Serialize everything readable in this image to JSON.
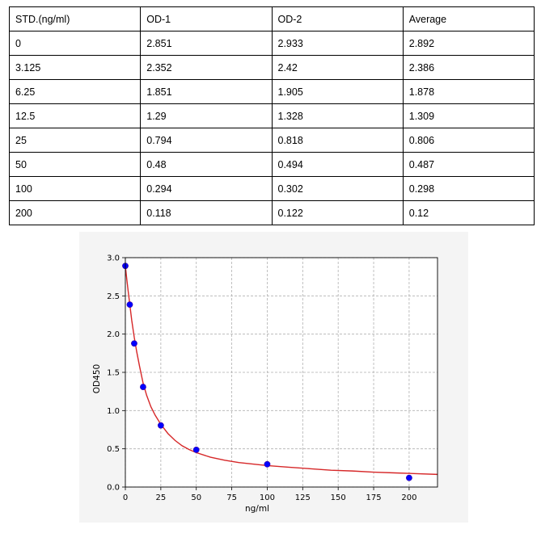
{
  "table": {
    "headers": [
      "STD.(ng/ml)",
      "OD-1",
      "OD-2",
      "Average"
    ],
    "rows": [
      [
        "0",
        "2.851",
        "2.933",
        "2.892"
      ],
      [
        "3.125",
        "2.352",
        "2.42",
        "2.386"
      ],
      [
        "6.25",
        "1.851",
        "1.905",
        "1.878"
      ],
      [
        "12.5",
        "1.29",
        "1.328",
        "1.309"
      ],
      [
        "25",
        "0.794",
        "0.818",
        "0.806"
      ],
      [
        "50",
        "0.48",
        "0.494",
        "0.487"
      ],
      [
        "100",
        "0.294",
        "0.302",
        "0.298"
      ],
      [
        "200",
        "0.118",
        "0.122",
        "0.12"
      ]
    ]
  },
  "chart_data": {
    "type": "scatter",
    "title": "",
    "xlabel": "ng/ml",
    "ylabel": "OD450",
    "xlim": [
      0,
      220
    ],
    "ylim": [
      0,
      3.0
    ],
    "x_ticks": [
      "0",
      "25",
      "50",
      "75",
      "100",
      "125",
      "150",
      "175",
      "200"
    ],
    "y_ticks": [
      "0.0",
      "0.5",
      "1.0",
      "1.5",
      "2.0",
      "2.5",
      "3.0"
    ],
    "grid": true,
    "points": {
      "x": [
        0,
        3.125,
        6.25,
        12.5,
        25,
        50,
        100,
        200
      ],
      "y": [
        2.892,
        2.386,
        1.878,
        1.309,
        0.806,
        0.487,
        0.298,
        0.12
      ]
    },
    "fit_curve": {
      "x": [
        0,
        1,
        2,
        3.125,
        4.5,
        6.25,
        8,
        10,
        12.5,
        15,
        18,
        21,
        25,
        30,
        35,
        40,
        45,
        50,
        60,
        70,
        80,
        90,
        100,
        115,
        130,
        145,
        160,
        175,
        190,
        205,
        220
      ],
      "y": [
        2.89,
        2.72,
        2.56,
        2.39,
        2.18,
        1.96,
        1.77,
        1.58,
        1.36,
        1.2,
        1.05,
        0.94,
        0.82,
        0.7,
        0.61,
        0.54,
        0.49,
        0.45,
        0.39,
        0.35,
        0.32,
        0.3,
        0.28,
        0.26,
        0.24,
        0.22,
        0.21,
        0.195,
        0.185,
        0.175,
        0.165
      ]
    },
    "colors": {
      "points": "#0000ff",
      "point_edge": "#3a00a0",
      "curve": "#d62728"
    }
  }
}
